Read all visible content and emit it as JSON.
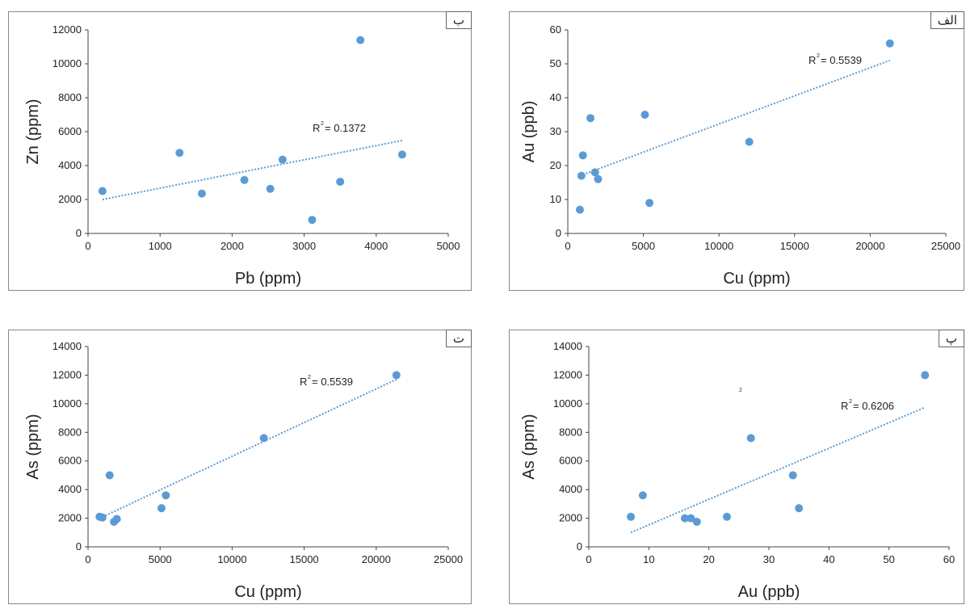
{
  "chart_data": [
    {
      "id": "b",
      "type": "scatter",
      "panel_label": "ب",
      "xlabel": "Pb (ppm)",
      "ylabel": "Zn (ppm)",
      "xlim": [
        0,
        5000
      ],
      "ylim": [
        0,
        12000
      ],
      "xticks": [
        0,
        1000,
        2000,
        3000,
        4000,
        5000
      ],
      "yticks": [
        0,
        2000,
        4000,
        6000,
        8000,
        10000,
        12000
      ],
      "points": [
        [
          200,
          2500
        ],
        [
          1270,
          4750
        ],
        [
          1580,
          2350
        ],
        [
          2170,
          3150
        ],
        [
          2530,
          2630
        ],
        [
          2700,
          4350
        ],
        [
          3110,
          800
        ],
        [
          3500,
          3050
        ],
        [
          3780,
          11400
        ],
        [
          4360,
          4650
        ]
      ],
      "trendline": {
        "x": [
          200,
          4360
        ],
        "y": [
          2000,
          5480
        ]
      },
      "r2_label": "R",
      "r2_sup": "2",
      "r2_value": "= 0.1372",
      "color": "#5b9bd5"
    },
    {
      "id": "alef",
      "type": "scatter",
      "panel_label": "الف",
      "xlabel": "Cu (ppm)",
      "ylabel": "Au (ppb)",
      "xlim": [
        0,
        25000
      ],
      "ylim": [
        0,
        60
      ],
      "xticks": [
        0,
        5000,
        10000,
        15000,
        20000,
        25000
      ],
      "yticks": [
        0,
        10,
        20,
        30,
        40,
        50,
        60
      ],
      "points": [
        [
          800,
          7
        ],
        [
          900,
          17
        ],
        [
          1000,
          23
        ],
        [
          1500,
          34
        ],
        [
          1800,
          18
        ],
        [
          2000,
          16
        ],
        [
          5100,
          35
        ],
        [
          5400,
          9
        ],
        [
          12000,
          27
        ],
        [
          21300,
          56
        ]
      ],
      "trendline": {
        "x": [
          800,
          21300
        ],
        "y": [
          17,
          51
        ]
      },
      "r2_label": "R",
      "r2_sup": "2",
      "r2_value": "= 0.5539",
      "color": "#5b9bd5"
    },
    {
      "id": "t",
      "type": "scatter",
      "panel_label": "ت",
      "xlabel": "Cu (ppm)",
      "ylabel": "As (ppm)",
      "xlim": [
        0,
        25000
      ],
      "ylim": [
        0,
        14000
      ],
      "xticks": [
        0,
        5000,
        10000,
        15000,
        20000,
        25000
      ],
      "yticks": [
        0,
        2000,
        4000,
        6000,
        8000,
        10000,
        12000,
        14000
      ],
      "points": [
        [
          800,
          2100
        ],
        [
          1000,
          2050
        ],
        [
          1500,
          5000
        ],
        [
          1800,
          1750
        ],
        [
          2000,
          1950
        ],
        [
          5100,
          2700
        ],
        [
          5400,
          3600
        ],
        [
          12200,
          7600
        ],
        [
          21400,
          12000
        ]
      ],
      "trendline": {
        "x": [
          800,
          21400
        ],
        "y": [
          2000,
          11700
        ]
      },
      "r2_label": "R",
      "r2_sup": "2",
      "r2_value": "= 0.5539",
      "color": "#5b9bd5"
    },
    {
      "id": "p",
      "type": "scatter",
      "panel_label": "پ",
      "xlabel": "Au (ppb)",
      "ylabel": "As (ppm)",
      "xlim": [
        0,
        60
      ],
      "ylim": [
        0,
        14000
      ],
      "xticks": [
        0,
        10,
        20,
        30,
        40,
        50,
        60
      ],
      "yticks": [
        0,
        2000,
        4000,
        6000,
        8000,
        10000,
        12000,
        14000
      ],
      "points": [
        [
          7,
          2100
        ],
        [
          9,
          3600
        ],
        [
          16,
          2000
        ],
        [
          17,
          2000
        ],
        [
          18,
          1750
        ],
        [
          23,
          2100
        ],
        [
          27,
          7600
        ],
        [
          34,
          5000
        ],
        [
          35,
          2700
        ],
        [
          56,
          12000
        ]
      ],
      "trendline": {
        "x": [
          7,
          56
        ],
        "y": [
          1000,
          9750
        ]
      },
      "r2_label": "R",
      "r2_sup": "2",
      "r2_value": "= 0.6206",
      "stray_mark": "2",
      "color": "#5b9bd5"
    }
  ]
}
